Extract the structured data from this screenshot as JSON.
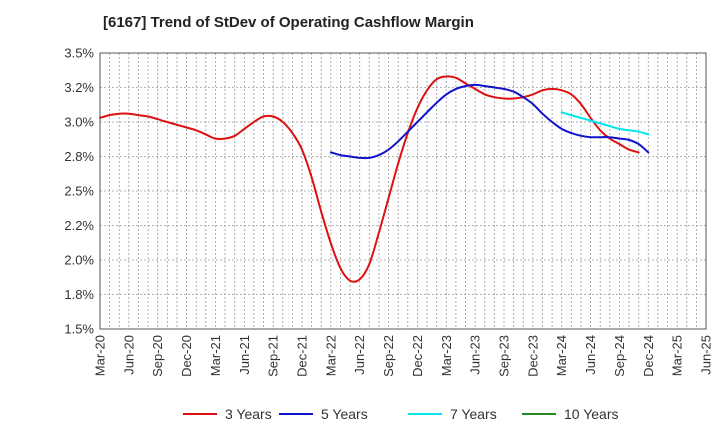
{
  "title": "[6167]  Trend of StDev of Operating Cashflow Margin",
  "chart_data": {
    "type": "line",
    "title": "[6167]  Trend of StDev of Operating Cashflow Margin",
    "ylim": [
      1.5,
      3.5
    ],
    "y_ticks": [
      1.5,
      1.75,
      2.0,
      2.25,
      2.5,
      2.75,
      3.0,
      3.25,
      3.5
    ],
    "y_tick_labels": [
      "1.5%",
      "1.8%",
      "2.0%",
      "2.2%",
      "2.5%",
      "2.8%",
      "3.0%",
      "3.2%",
      "3.5%"
    ],
    "x_tick_labels": [
      "Mar-20",
      "Jun-20",
      "Sep-20",
      "Dec-20",
      "Mar-21",
      "Jun-21",
      "Sep-21",
      "Dec-21",
      "Mar-22",
      "Jun-22",
      "Sep-22",
      "Dec-22",
      "Mar-23",
      "Jun-23",
      "Sep-23",
      "Dec-23",
      "Mar-24",
      "Jun-24",
      "Sep-24",
      "Dec-24",
      "Mar-25",
      "Jun-25"
    ],
    "grid": true,
    "legend_position": "bottom",
    "series": [
      {
        "name": "3 Years",
        "color": "#dd1111",
        "points": [
          [
            "Mar-20",
            3.03
          ],
          [
            "Apr-20",
            3.05
          ],
          [
            "May-20",
            3.06
          ],
          [
            "Jun-20",
            3.06
          ],
          [
            "Jul-20",
            3.05
          ],
          [
            "Aug-20",
            3.04
          ],
          [
            "Sep-20",
            3.02
          ],
          [
            "Oct-20",
            3.0
          ],
          [
            "Nov-20",
            2.98
          ],
          [
            "Dec-20",
            2.96
          ],
          [
            "Jan-21",
            2.94
          ],
          [
            "Feb-21",
            2.91
          ],
          [
            "Mar-21",
            2.88
          ],
          [
            "Apr-21",
            2.88
          ],
          [
            "May-21",
            2.9
          ],
          [
            "Jun-21",
            2.95
          ],
          [
            "Jul-21",
            3.0
          ],
          [
            "Aug-21",
            3.04
          ],
          [
            "Sep-21",
            3.04
          ],
          [
            "Oct-21",
            3.0
          ],
          [
            "Nov-21",
            2.92
          ],
          [
            "Dec-21",
            2.8
          ],
          [
            "Jan-22",
            2.6
          ],
          [
            "Feb-22",
            2.35
          ],
          [
            "Mar-22",
            2.12
          ],
          [
            "Apr-22",
            1.94
          ],
          [
            "May-22",
            1.85
          ],
          [
            "Jun-22",
            1.86
          ],
          [
            "Jul-22",
            1.97
          ],
          [
            "Aug-22",
            2.2
          ],
          [
            "Sep-22",
            2.45
          ],
          [
            "Oct-22",
            2.7
          ],
          [
            "Nov-22",
            2.92
          ],
          [
            "Dec-22",
            3.1
          ],
          [
            "Jan-23",
            3.23
          ],
          [
            "Feb-23",
            3.31
          ],
          [
            "Mar-23",
            3.33
          ],
          [
            "Apr-23",
            3.32
          ],
          [
            "May-23",
            3.28
          ],
          [
            "Jun-23",
            3.24
          ],
          [
            "Jul-23",
            3.2
          ],
          [
            "Aug-23",
            3.18
          ],
          [
            "Sep-23",
            3.17
          ],
          [
            "Oct-23",
            3.17
          ],
          [
            "Nov-23",
            3.18
          ],
          [
            "Dec-23",
            3.2
          ],
          [
            "Jan-24",
            3.23
          ],
          [
            "Feb-24",
            3.24
          ],
          [
            "Mar-24",
            3.23
          ],
          [
            "Apr-24",
            3.2
          ],
          [
            "May-24",
            3.13
          ],
          [
            "Jun-24",
            3.03
          ],
          [
            "Jul-24",
            2.94
          ],
          [
            "Aug-24",
            2.88
          ],
          [
            "Sep-24",
            2.84
          ],
          [
            "Oct-24",
            2.8
          ],
          [
            "Nov-24",
            2.78
          ]
        ]
      },
      {
        "name": "5 Years",
        "color": "#1111cc",
        "points": [
          [
            "Mar-22",
            2.78
          ],
          [
            "Apr-22",
            2.76
          ],
          [
            "May-22",
            2.75
          ],
          [
            "Jun-22",
            2.74
          ],
          [
            "Jul-22",
            2.74
          ],
          [
            "Aug-22",
            2.76
          ],
          [
            "Sep-22",
            2.8
          ],
          [
            "Oct-22",
            2.86
          ],
          [
            "Nov-22",
            2.93
          ],
          [
            "Dec-22",
            3.0
          ],
          [
            "Jan-23",
            3.07
          ],
          [
            "Feb-23",
            3.14
          ],
          [
            "Mar-23",
            3.2
          ],
          [
            "Apr-23",
            3.24
          ],
          [
            "May-23",
            3.26
          ],
          [
            "Jun-23",
            3.27
          ],
          [
            "Jul-23",
            3.26
          ],
          [
            "Aug-23",
            3.25
          ],
          [
            "Sep-23",
            3.24
          ],
          [
            "Oct-23",
            3.22
          ],
          [
            "Nov-23",
            3.18
          ],
          [
            "Dec-23",
            3.13
          ],
          [
            "Jan-24",
            3.06
          ],
          [
            "Feb-24",
            3.0
          ],
          [
            "Mar-24",
            2.95
          ],
          [
            "Apr-24",
            2.92
          ],
          [
            "May-24",
            2.9
          ],
          [
            "Jun-24",
            2.89
          ],
          [
            "Jul-24",
            2.89
          ],
          [
            "Aug-24",
            2.89
          ],
          [
            "Sep-24",
            2.88
          ],
          [
            "Oct-24",
            2.87
          ],
          [
            "Nov-24",
            2.84
          ],
          [
            "Dec-24",
            2.78
          ]
        ]
      },
      {
        "name": "7 Years",
        "color": "#00e5ee",
        "points": [
          [
            "Mar-24",
            3.07
          ],
          [
            "Apr-24",
            3.05
          ],
          [
            "May-24",
            3.03
          ],
          [
            "Jun-24",
            3.01
          ],
          [
            "Jul-24",
            2.99
          ],
          [
            "Aug-24",
            2.97
          ],
          [
            "Sep-24",
            2.95
          ],
          [
            "Oct-24",
            2.94
          ],
          [
            "Nov-24",
            2.93
          ],
          [
            "Dec-24",
            2.91
          ]
        ]
      },
      {
        "name": "10 Years",
        "color": "#228822",
        "points": []
      }
    ]
  }
}
